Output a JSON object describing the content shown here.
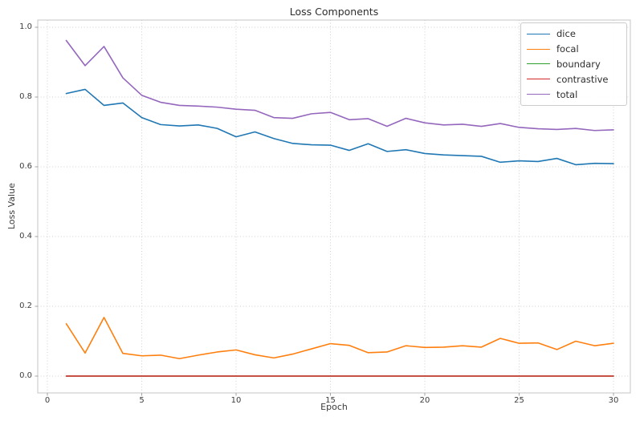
{
  "chart_data": {
    "type": "line",
    "title": "Loss Components",
    "xlabel": "Epoch",
    "ylabel": "Loss Value",
    "grid": true,
    "legend_position": "upper right",
    "xlim": [
      -0.511,
      30.894
    ],
    "ylim": [
      -0.0483,
      1.0207
    ],
    "xticks": [
      0,
      5,
      10,
      15,
      20,
      25,
      30
    ],
    "yticks": [
      "0.0",
      "0.2",
      "0.4",
      "0.6",
      "0.8",
      "1.0"
    ],
    "ytick_values": [
      0.0,
      0.2,
      0.4,
      0.6,
      0.8,
      1.0
    ],
    "x": [
      1,
      2,
      3,
      4,
      5,
      6,
      7,
      8,
      9,
      10,
      11,
      12,
      13,
      14,
      15,
      16,
      17,
      18,
      19,
      20,
      21,
      22,
      23,
      24,
      25,
      26,
      27,
      28,
      29,
      30
    ],
    "series": [
      {
        "name": "dice",
        "color": "#1f77b4",
        "values": [
          0.81,
          0.822,
          0.776,
          0.783,
          0.741,
          0.721,
          0.717,
          0.72,
          0.71,
          0.686,
          0.7,
          0.681,
          0.667,
          0.663,
          0.662,
          0.647,
          0.666,
          0.644,
          0.649,
          0.638,
          0.634,
          0.632,
          0.63,
          0.613,
          0.617,
          0.615,
          0.624,
          0.606,
          0.61,
          0.609
        ]
      },
      {
        "name": "focal",
        "color": "#ff7f0e",
        "values": [
          0.15,
          0.066,
          0.168,
          0.065,
          0.058,
          0.06,
          0.05,
          0.06,
          0.069,
          0.075,
          0.061,
          0.052,
          0.063,
          0.078,
          0.093,
          0.088,
          0.067,
          0.069,
          0.087,
          0.082,
          0.083,
          0.087,
          0.083,
          0.108,
          0.094,
          0.095,
          0.076,
          0.1,
          0.087,
          0.094
        ]
      },
      {
        "name": "boundary",
        "color": "#2ca02c",
        "values": [
          0.0,
          0.0,
          0.0,
          0.0,
          0.0,
          0.0,
          0.0,
          0.0,
          0.0,
          0.0,
          0.0,
          0.0,
          0.0,
          0.0,
          0.0,
          0.0,
          0.0,
          0.0,
          0.0,
          0.0,
          0.0,
          0.0,
          0.0,
          0.0,
          0.0,
          0.0,
          0.0,
          0.0,
          0.0,
          0.0
        ]
      },
      {
        "name": "contrastive",
        "color": "#d62728",
        "values": [
          0.0,
          0.0,
          0.0,
          0.0,
          0.0,
          0.0,
          0.0,
          0.0,
          0.0,
          0.0,
          0.0,
          0.0,
          0.0,
          0.0,
          0.0,
          0.0,
          0.0,
          0.0,
          0.0,
          0.0,
          0.0,
          0.0,
          0.0,
          0.0,
          0.0,
          0.0,
          0.0,
          0.0,
          0.0,
          0.0
        ]
      },
      {
        "name": "total",
        "color": "#9467bd",
        "values": [
          0.962,
          0.89,
          0.945,
          0.855,
          0.805,
          0.785,
          0.776,
          0.774,
          0.771,
          0.765,
          0.762,
          0.741,
          0.739,
          0.752,
          0.756,
          0.735,
          0.738,
          0.716,
          0.739,
          0.726,
          0.72,
          0.722,
          0.716,
          0.724,
          0.713,
          0.709,
          0.707,
          0.71,
          0.704,
          0.706
        ]
      }
    ]
  }
}
